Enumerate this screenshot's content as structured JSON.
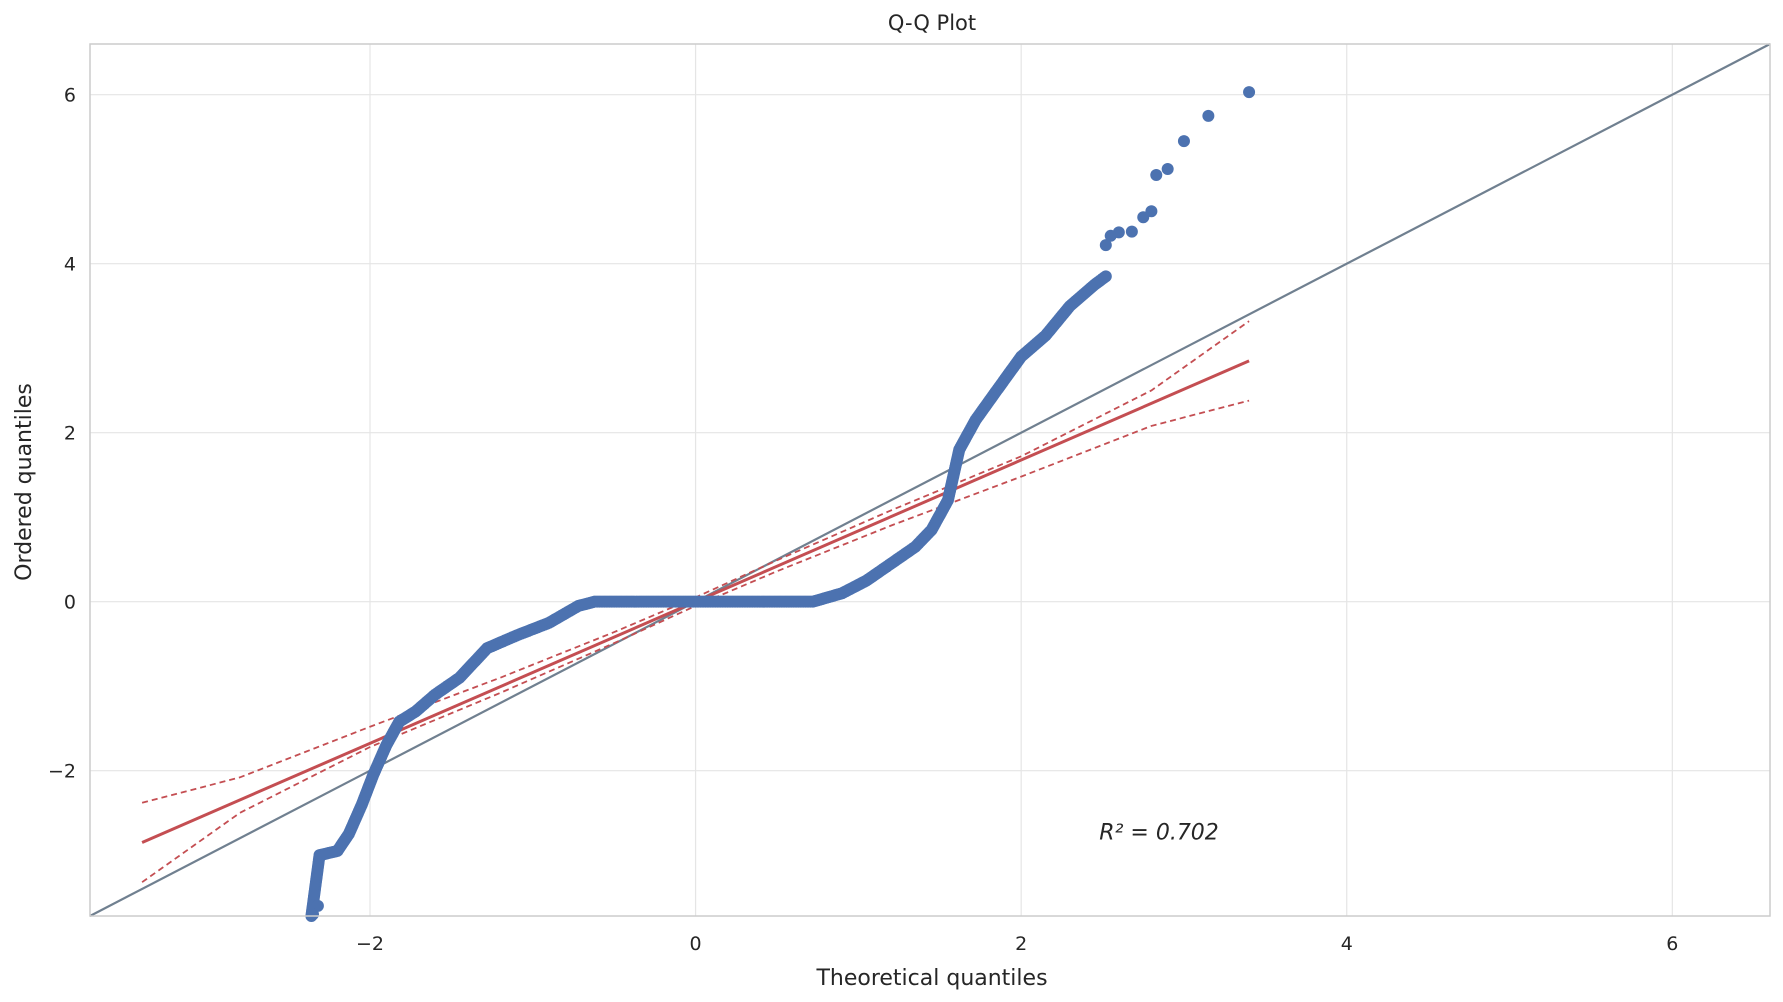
{
  "chart_data": {
    "type": "scatter",
    "title": "Q-Q Plot",
    "xlabel": "Theoretical quantiles",
    "ylabel": "Ordered quantiles",
    "xlim": [
      -3.72,
      6.6
    ],
    "ylim": [
      -3.72,
      6.6
    ],
    "xticks": [
      -2,
      0,
      2,
      4,
      6
    ],
    "yticks": [
      -2,
      0,
      2,
      4,
      6
    ],
    "xtick_labels": [
      "−2",
      "0",
      "2",
      "4",
      "6"
    ],
    "ytick_labels": [
      "−2",
      "0",
      "2",
      "4",
      "6"
    ],
    "grid": true,
    "annotation": {
      "text": "R² = 0.702",
      "x": 2.48,
      "y": -2.72
    },
    "points": {
      "color": "#4c72b0",
      "curve_x": [
        -2.36,
        -2.31,
        -2.2,
        -2.13,
        -2.05,
        -1.98,
        -1.9,
        -1.82,
        -1.72,
        -1.6,
        -1.45,
        -1.28,
        -1.1,
        -0.9,
        -0.72,
        -0.62,
        -0.5,
        0.0,
        0.5,
        0.72,
        0.9,
        1.05,
        1.2,
        1.35,
        1.45,
        1.55,
        1.62,
        1.72,
        1.85,
        2.0,
        2.15,
        2.3,
        2.45,
        2.52
      ],
      "curve_y": [
        -3.72,
        -3.0,
        -2.95,
        -2.75,
        -2.4,
        -2.05,
        -1.7,
        -1.42,
        -1.3,
        -1.1,
        -0.9,
        -0.55,
        -0.4,
        -0.25,
        -0.05,
        0.0,
        0.0,
        0.0,
        0.0,
        0.0,
        0.1,
        0.25,
        0.45,
        0.65,
        0.85,
        1.2,
        1.8,
        2.15,
        2.5,
        2.9,
        3.15,
        3.5,
        3.75,
        3.85
      ],
      "outliers": [
        [
          2.52,
          4.22
        ],
        [
          2.55,
          4.33
        ],
        [
          2.6,
          4.37
        ],
        [
          2.68,
          4.38
        ],
        [
          2.75,
          4.55
        ],
        [
          2.8,
          4.62
        ],
        [
          2.83,
          5.05
        ],
        [
          2.9,
          5.12
        ],
        [
          3.0,
          5.45
        ],
        [
          3.15,
          5.75
        ],
        [
          3.4,
          6.03
        ],
        [
          -2.32,
          -3.6
        ],
        [
          -2.35,
          -3.7
        ]
      ]
    },
    "fit_line": {
      "color": "#c44e52",
      "x": [
        -3.4,
        3.4
      ],
      "y": [
        -2.85,
        2.85
      ]
    },
    "confidence_band": {
      "color": "#c44e52",
      "x": [
        -3.4,
        -2.8,
        -2.0,
        -1.2,
        -0.5,
        0.0,
        0.5,
        1.2,
        2.0,
        2.8,
        3.4
      ],
      "upper": [
        -2.38,
        -2.08,
        -1.48,
        -0.9,
        -0.36,
        0.05,
        0.49,
        1.08,
        1.72,
        2.5,
        3.32
      ],
      "lower": [
        -3.32,
        -2.5,
        -1.72,
        -1.08,
        -0.49,
        -0.05,
        0.36,
        0.9,
        1.48,
        2.08,
        2.38
      ]
    },
    "reference_line": {
      "color": "#708090",
      "x": [
        -3.72,
        6.6
      ],
      "y": [
        -3.72,
        6.6
      ]
    }
  }
}
